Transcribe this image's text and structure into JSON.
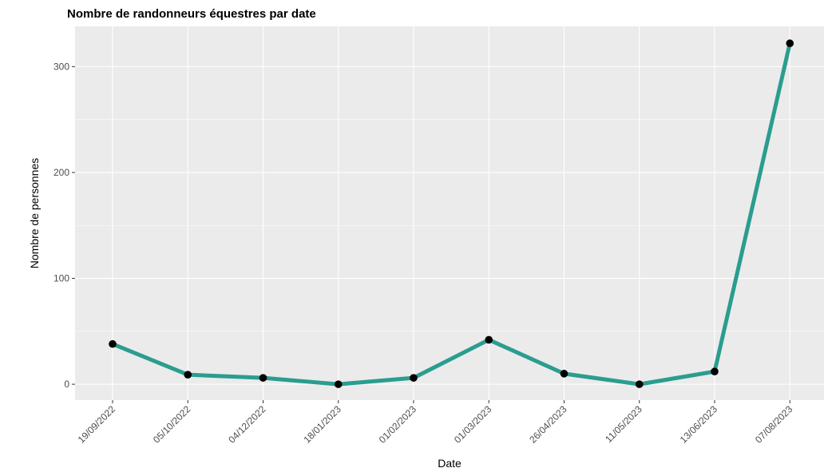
{
  "chart_data": {
    "type": "line",
    "title": "Nombre de randonneurs équestres par date",
    "xlabel": "Date",
    "ylabel": "Nombre de personnes",
    "categories": [
      "19/09/2022",
      "05/10/2022",
      "04/12/2022",
      "18/01/2023",
      "01/02/2023",
      "01/03/2023",
      "26/04/2023",
      "11/05/2023",
      "13/06/2023",
      "07/08/2023"
    ],
    "series": [
      {
        "values": [
          38,
          9,
          6,
          0,
          6,
          42,
          10,
          0,
          12,
          322
        ]
      }
    ],
    "yticks": [
      0,
      100,
      200,
      300
    ],
    "ylim": [
      -15,
      338
    ],
    "grid": true,
    "colors": {
      "line": "#2a9d8f",
      "point": "#000000",
      "panel": "#ebebeb",
      "grid": "#ffffff"
    }
  }
}
